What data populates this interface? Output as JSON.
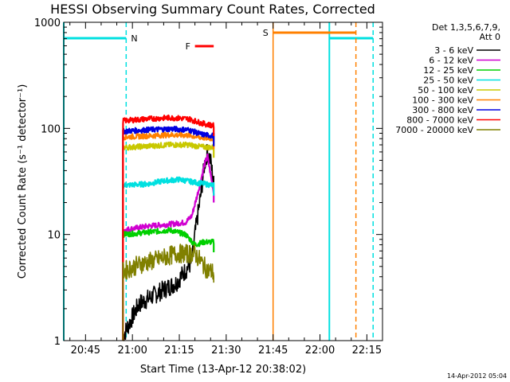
{
  "chart_data": {
    "type": "line",
    "title": "HESSI Observing Summary Count Rates, Corrected",
    "xlabel": "Start Time (13-Apr-12 20:38:02)",
    "ylabel": "Corrected Count Rate (s⁻¹ detector⁻¹)",
    "y_scale": "log",
    "ylim": [
      1,
      1000
    ],
    "xlim": [
      "20:38:02",
      "22:20:00"
    ],
    "x_ticks": [
      "20:45",
      "21:00",
      "21:15",
      "21:30",
      "21:45",
      "22:00",
      "22:15"
    ],
    "y_ticks": [
      "1",
      "10",
      "100",
      "1000"
    ],
    "legend": {
      "position": "top-right",
      "header": [
        "Det 1,3,5,6,7,9,",
        "Att 0"
      ]
    },
    "series": [
      {
        "name": "3 - 6 keV",
        "color": "#000000",
        "x": [
          "20:57",
          "21:02",
          "21:08",
          "21:14",
          "21:19",
          "21:20",
          "21:22",
          "21:23",
          "21:24",
          "21:25",
          "21:26"
        ],
        "y": [
          1.1,
          2.2,
          2.8,
          3.5,
          5.5,
          10,
          25,
          45,
          60,
          50,
          30
        ]
      },
      {
        "name": "6 - 12 keV",
        "color": "#d000d0",
        "x": [
          "20:57",
          "21:05",
          "21:12",
          "21:17",
          "21:19",
          "21:21",
          "21:23",
          "21:24",
          "21:26"
        ],
        "y": [
          11,
          12,
          12.5,
          13,
          15,
          25,
          45,
          55,
          25
        ]
      },
      {
        "name": "12 - 25 keV",
        "color": "#00d000",
        "x": [
          "20:57",
          "21:05",
          "21:12",
          "21:17",
          "21:20",
          "21:23",
          "21:26"
        ],
        "y": [
          10,
          10.5,
          11,
          10,
          8,
          8.5,
          8.5
        ]
      },
      {
        "name": "25 - 50 keV",
        "color": "#00e0e0",
        "x": [
          "20:57",
          "21:05",
          "21:10",
          "21:15",
          "21:20",
          "21:26"
        ],
        "y": [
          29,
          30,
          32,
          33,
          31,
          29
        ]
      },
      {
        "name": "50 - 100 keV",
        "color": "#c8c800",
        "x": [
          "20:57",
          "21:05",
          "21:12",
          "21:18",
          "21:22",
          "21:26"
        ],
        "y": [
          66,
          68,
          70,
          70,
          67,
          66
        ]
      },
      {
        "name": "100 - 300 keV",
        "color": "#ff8000",
        "x": [
          "20:57",
          "21:05",
          "21:12",
          "21:18",
          "21:22",
          "21:26"
        ],
        "y": [
          83,
          85,
          87,
          86,
          82,
          80
        ]
      },
      {
        "name": "300 - 800 keV",
        "color": "#0000e0",
        "x": [
          "20:57",
          "21:05",
          "21:12",
          "21:18",
          "21:22",
          "21:26"
        ],
        "y": [
          94,
          97,
          99,
          97,
          88,
          85
        ]
      },
      {
        "name": "800 - 7000 keV",
        "color": "#ff0000",
        "x": [
          "20:57",
          "21:05",
          "21:12",
          "21:18",
          "21:22",
          "21:26"
        ],
        "y": [
          118,
          123,
          126,
          123,
          112,
          106
        ]
      },
      {
        "name": "7000 - 20000 keV",
        "color": "#808000",
        "x": [
          "20:57",
          "21:02",
          "21:08",
          "21:14",
          "21:20",
          "21:24",
          "21:26"
        ],
        "y": [
          4.5,
          5.2,
          5.8,
          6.6,
          6.6,
          4.6,
          4.4
        ]
      }
    ],
    "annotations": [
      {
        "label": "N",
        "color": "#00e0e0",
        "kind": "night",
        "x_start": "20:38:02",
        "x_end": "20:58:00"
      },
      {
        "label": "",
        "color": "#00e0e0",
        "kind": "night",
        "x_start": "22:03:00",
        "x_end": "22:17:00"
      },
      {
        "label": "F",
        "color": "#ff0000",
        "kind": "flare",
        "x_start": "21:20:00",
        "x_end": "21:26:00"
      },
      {
        "label": "S",
        "color": "#ff8000",
        "kind": "saa",
        "x_start": "21:45:00",
        "x_end": "22:11:30"
      }
    ]
  },
  "footer": {
    "timestamp": "14-Apr-2012 05:04"
  }
}
